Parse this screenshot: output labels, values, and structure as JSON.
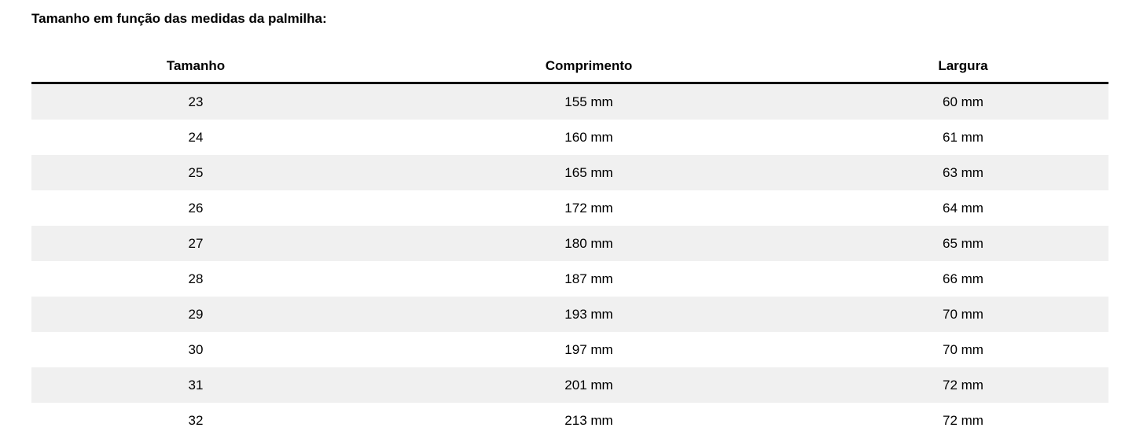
{
  "title": "Tamanho em função das medidas da palmilha:",
  "table": {
    "headers": [
      "Tamanho",
      "Comprimento",
      "Largura"
    ],
    "rows": [
      [
        "23",
        "155 mm",
        "60 mm"
      ],
      [
        "24",
        "160 mm",
        "61 mm"
      ],
      [
        "25",
        "165 mm",
        "63 mm"
      ],
      [
        "26",
        "172 mm",
        "64 mm"
      ],
      [
        "27",
        "180 mm",
        "65 mm"
      ],
      [
        "28",
        "187 mm",
        "66 mm"
      ],
      [
        "29",
        "193 mm",
        "70 mm"
      ],
      [
        "30",
        "197 mm",
        "70 mm"
      ],
      [
        "31",
        "201 mm",
        "72 mm"
      ],
      [
        "32",
        "213 mm",
        "72 mm"
      ]
    ]
  },
  "colors": {
    "stripe": "#f0f0f0",
    "header_border": "#000000"
  }
}
